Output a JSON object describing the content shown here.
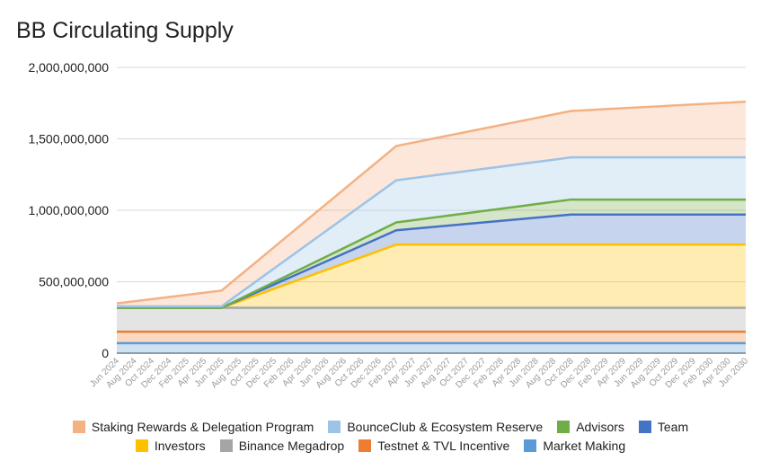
{
  "chart_data": {
    "type": "area",
    "stacked": true,
    "title": "BB Circulating Supply",
    "xlabel": "",
    "ylabel": "",
    "ylim": [
      0,
      2000000000
    ],
    "yticks": [
      "0",
      "500,000,000",
      "1,000,000,000",
      "1,500,000,000",
      "2,000,000,000"
    ],
    "x": [
      "Jun 2024",
      "Aug 2024",
      "Oct 2024",
      "Dec 2024",
      "Feb 2025",
      "Apr 2025",
      "Jun 2025",
      "Aug 2025",
      "Oct 2025",
      "Dec 2025",
      "Feb 2026",
      "Apr 2026",
      "Jun 2026",
      "Aug 2026",
      "Oct 2026",
      "Dec 2026",
      "Feb 2027",
      "Apr 2027",
      "Jun 2027",
      "Aug 2027",
      "Oct 2027",
      "Dec 2027",
      "Feb 2028",
      "Apr 2028",
      "Jun 2028",
      "Aug 2028",
      "Oct 2028",
      "Dec 2028",
      "Feb 2029",
      "Apr 2029",
      "Jun 2029",
      "Aug 2029",
      "Oct 2029",
      "Dec 2029",
      "Feb 2030",
      "Apr 2030",
      "Jun 2030"
    ],
    "grid": true,
    "legend_position": "bottom",
    "series": [
      {
        "name": "Market Making",
        "color": "#5b9bd5",
        "keyframes": [
          [
            0,
            70000000
          ],
          [
            36,
            70000000
          ]
        ]
      },
      {
        "name": "Testnet & TVL Incentive",
        "color": "#ed7d31",
        "keyframes": [
          [
            0,
            80000000
          ],
          [
            36,
            80000000
          ]
        ]
      },
      {
        "name": "Binance Megadrop",
        "color": "#a5a5a5",
        "keyframes": [
          [
            0,
            168000000
          ],
          [
            36,
            168000000
          ]
        ]
      },
      {
        "name": "Investors",
        "color": "#ffc000",
        "keyframes": [
          [
            0,
            0
          ],
          [
            6,
            0
          ],
          [
            16,
            442000000
          ],
          [
            36,
            442000000
          ]
        ]
      },
      {
        "name": "Team",
        "color": "#4472c4",
        "keyframes": [
          [
            0,
            0
          ],
          [
            6,
            0
          ],
          [
            16,
            100000000
          ],
          [
            26,
            210000000
          ],
          [
            36,
            210000000
          ]
        ]
      },
      {
        "name": "Advisors",
        "color": "#70ad47",
        "keyframes": [
          [
            0,
            0
          ],
          [
            6,
            0
          ],
          [
            16,
            55000000
          ],
          [
            26,
            105000000
          ],
          [
            36,
            105000000
          ]
        ]
      },
      {
        "name": "BounceClub & Ecosystem Reserve",
        "color": "#9dc3e6",
        "keyframes": [
          [
            0,
            10000000
          ],
          [
            6,
            10000000
          ],
          [
            16,
            295000000
          ],
          [
            26,
            295000000
          ],
          [
            36,
            295000000
          ]
        ]
      },
      {
        "name": "Staking Rewards & Delegation Program",
        "color": "#f4b183",
        "keyframes": [
          [
            0,
            20000000
          ],
          [
            6,
            110000000
          ],
          [
            16,
            240000000
          ],
          [
            26,
            325000000
          ],
          [
            36,
            390000000
          ]
        ]
      }
    ],
    "legend_rows": [
      [
        "Staking Rewards & Delegation Program",
        "BounceClub & Ecosystem Reserve",
        "Advisors",
        "Team"
      ],
      [
        "Investors",
        "Binance Megadrop",
        "Testnet & TVL Incentive",
        "Market Making"
      ]
    ]
  }
}
